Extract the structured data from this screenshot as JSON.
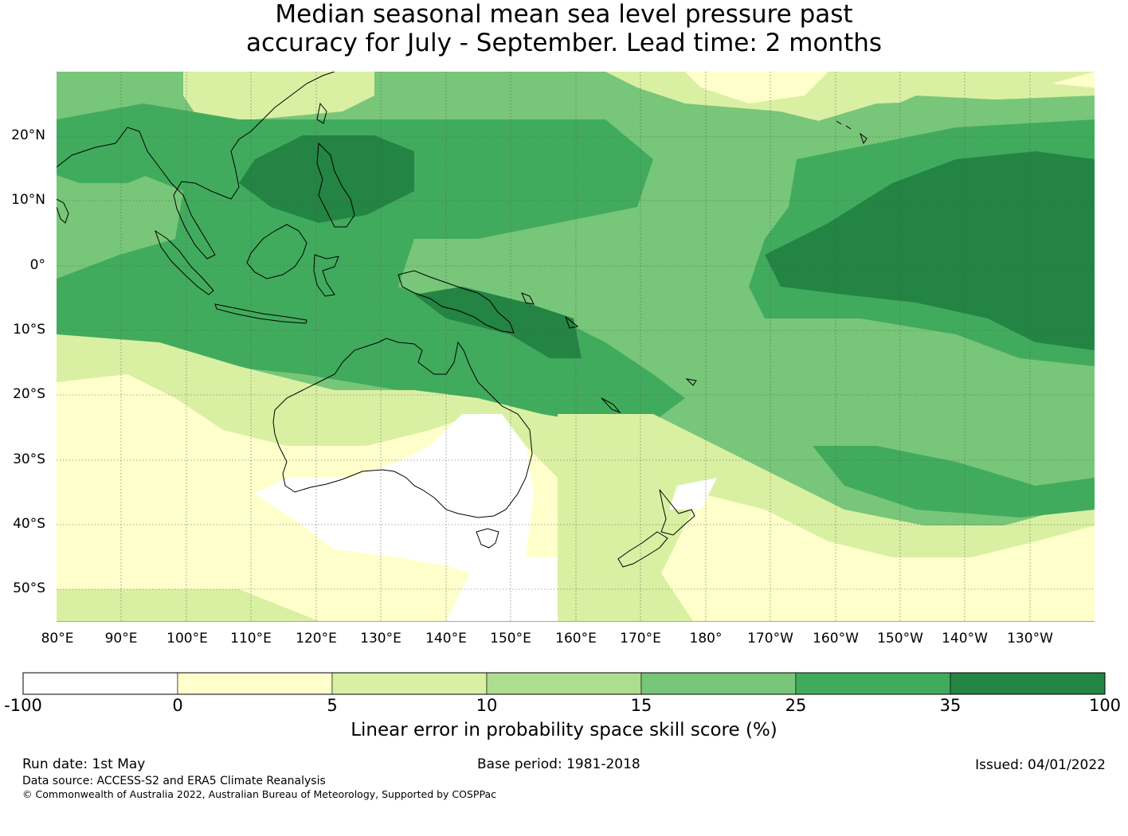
{
  "title": {
    "line1": "Median seasonal mean sea level pressure past",
    "line2": "accuracy for July - September. Lead time: 2 months"
  },
  "map": {
    "lat_labels": [
      "20°N",
      "10°N",
      "0°",
      "10°S",
      "20°S",
      "30°S",
      "40°S",
      "50°S"
    ],
    "lon_labels": [
      "80°E",
      "90°E",
      "100°E",
      "110°E",
      "120°E",
      "130°E",
      "140°E",
      "150°E",
      "160°E",
      "170°E",
      "180°",
      "170°W",
      "160°W",
      "150°W",
      "140°W",
      "130°W"
    ],
    "grid": true,
    "coastline_color": "#000000"
  },
  "colorbar": {
    "ticks": [
      "-100",
      "0",
      "5",
      "10",
      "15",
      "25",
      "35",
      "100"
    ],
    "colors": [
      "#ffffff",
      "#ffffcc",
      "#d9f0a3",
      "#addd8e",
      "#78c679",
      "#41ab5d",
      "#238443"
    ],
    "label": "Linear error in probability space skill score (%)"
  },
  "footer": {
    "run_date": "Run date: 1st May",
    "base_period": "Base period: 1981-2018",
    "issued": "Issued: 04/01/2022",
    "data_source": "Data source: ACCESS-S2 and ERA5 Climate Reanalysis",
    "copyright": "© Commonwealth of Australia 2022, Australian Bureau of Meteorology, Supported by COSPPac"
  }
}
